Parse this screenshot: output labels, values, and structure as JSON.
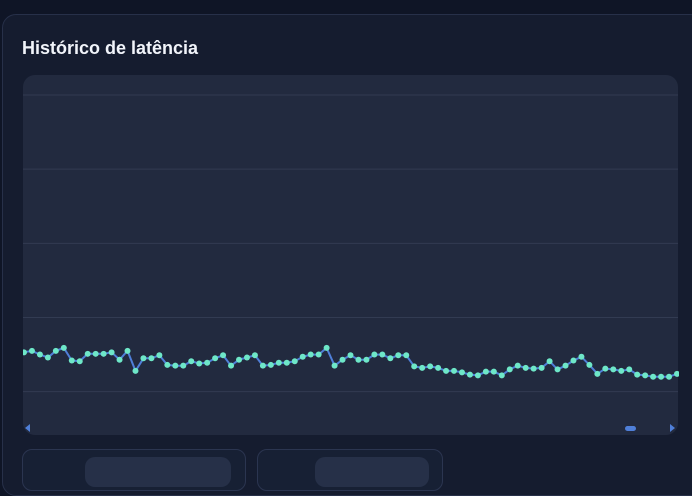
{
  "header": {
    "title": "Histórico de latência"
  },
  "chart_data": {
    "type": "line",
    "values": [
      0.53,
      0.55,
      0.5,
      0.46,
      0.55,
      0.59,
      0.42,
      0.41,
      0.51,
      0.51,
      0.51,
      0.53,
      0.43,
      0.55,
      0.28,
      0.45,
      0.45,
      0.49,
      0.36,
      0.35,
      0.35,
      0.41,
      0.38,
      0.39,
      0.45,
      0.49,
      0.35,
      0.43,
      0.46,
      0.49,
      0.35,
      0.36,
      0.39,
      0.39,
      0.41,
      0.47,
      0.5,
      0.5,
      0.59,
      0.35,
      0.43,
      0.49,
      0.43,
      0.43,
      0.5,
      0.5,
      0.45,
      0.49,
      0.49,
      0.34,
      0.32,
      0.34,
      0.32,
      0.28,
      0.28,
      0.26,
      0.23,
      0.22,
      0.27,
      0.27,
      0.22,
      0.3,
      0.35,
      0.32,
      0.31,
      0.32,
      0.41,
      0.3,
      0.35,
      0.42,
      0.47,
      0.36,
      0.24,
      0.31,
      0.3,
      0.28,
      0.3,
      0.23,
      0.22,
      0.2,
      0.2,
      0.2,
      0.24
    ],
    "color": "#4f7fd8",
    "point_color": "#6ee7c8",
    "ylim": [
      -0.45,
      4.27
    ],
    "yticks": [
      0,
      1,
      2,
      3,
      4
    ],
    "grid": true
  }
}
